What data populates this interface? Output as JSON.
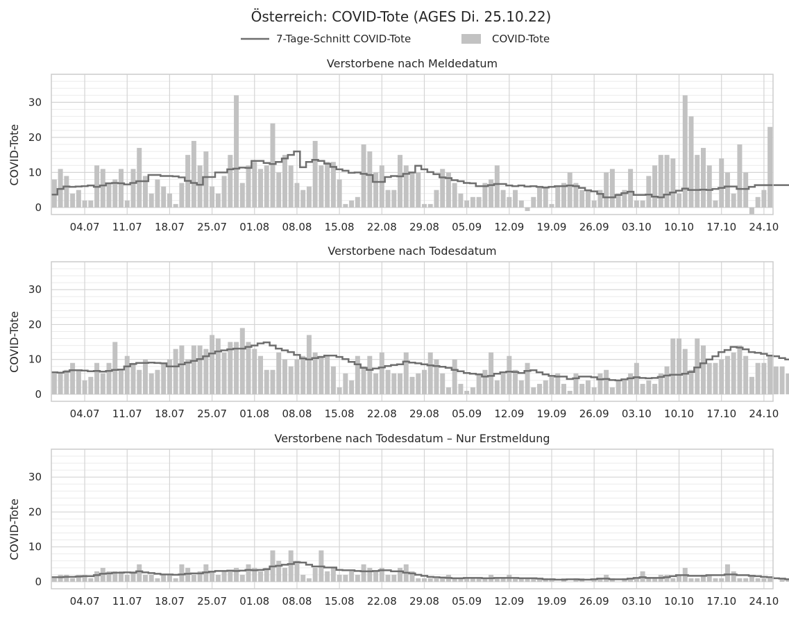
{
  "title": "Österreich: COVID-Tote (AGES Di. 25.10.22)",
  "legend": {
    "line_label": "7-Tage-Schnitt COVID-Tote",
    "bar_label": "COVID-Tote"
  },
  "colors": {
    "bar": "#c2c2c2",
    "line": "#6e6e6e",
    "grid_major": "#d4d4d4",
    "grid_minor": "#ebebeb",
    "frame": "#cccccc",
    "text": "#262626"
  },
  "chart_data": [
    {
      "type": "bar",
      "title": "Verstorbene nach Meldedatum",
      "ylabel": "COVID-Tote",
      "ylim": [
        -2,
        38
      ],
      "yticks": [
        0,
        10,
        20,
        30
      ],
      "xtick_labels": [
        "04.07",
        "11.07",
        "18.07",
        "25.07",
        "01.08",
        "08.08",
        "15.08",
        "22.08",
        "29.08",
        "05.09",
        "12.09",
        "19.09",
        "26.09",
        "03.10",
        "10.10",
        "17.10",
        "24.10"
      ],
      "first_date": "2022-06-29",
      "last_date": "2022-10-25",
      "values": [
        8,
        11,
        9,
        4,
        5,
        2,
        2,
        12,
        11,
        7,
        8,
        11,
        2,
        11,
        17,
        9,
        4,
        8,
        6,
        4,
        1,
        7,
        15,
        19,
        12,
        16,
        6,
        4,
        9,
        15,
        32,
        7,
        12,
        13,
        11,
        12,
        24,
        10,
        15,
        12,
        7,
        5,
        6,
        19,
        12,
        13,
        13,
        8,
        1,
        2,
        3,
        18,
        16,
        10,
        12,
        5,
        5,
        15,
        12,
        10,
        10,
        1,
        1,
        5,
        11,
        10,
        7,
        4,
        2,
        3,
        3,
        7,
        8,
        12,
        5,
        3,
        5,
        2,
        -1,
        3,
        6,
        6,
        1,
        6,
        7,
        10,
        7,
        5,
        5,
        2,
        5,
        10,
        11,
        4,
        5,
        11,
        2,
        2,
        9,
        12,
        15,
        15,
        14,
        4,
        32,
        26,
        15,
        17,
        12,
        2,
        14,
        10,
        4,
        18,
        10,
        -2,
        3,
        5,
        23
      ],
      "avg7": [
        3.7,
        5.3,
        6.0,
        5.9,
        6.0,
        6.1,
        6.3,
        5.9,
        6.3,
        6.9,
        7.0,
        6.9,
        6.6,
        7.0,
        7.5,
        7.5,
        9.3,
        9.3,
        9.0,
        9.0,
        8.9,
        8.6,
        7.6,
        7.0,
        6.5,
        8.7,
        8.7,
        10.0,
        10.0,
        10.9,
        11.1,
        11.4,
        11.3,
        13.3,
        13.3,
        12.7,
        12.4,
        13.0,
        14.0,
        15.0,
        16.0,
        11.5,
        13.0,
        13.6,
        13.3,
        12.5,
        11.6,
        10.9,
        10.5,
        9.9,
        10.0,
        9.6,
        9.3,
        7.3,
        7.3,
        8.7,
        9.0,
        8.9,
        9.6,
        10.0,
        11.9,
        10.9,
        10.1,
        9.5,
        8.6,
        8.4,
        7.8,
        7.5,
        7.0,
        6.9,
        6.1,
        6.1,
        6.4,
        6.7,
        6.7,
        6.3,
        6.1,
        6.3,
        6.0,
        6.1,
        5.9,
        5.7,
        5.9,
        6.1,
        6.1,
        6.3,
        6.1,
        5.6,
        4.9,
        4.6,
        3.9,
        2.9,
        2.9,
        3.6,
        4.1,
        4.5,
        3.6,
        3.6,
        3.7,
        3.1,
        2.9,
        3.7,
        4.3,
        4.8,
        5.4,
        5.0,
        5.0,
        5.1,
        5.0,
        5.3,
        5.6,
        6.0,
        6.0,
        5.3,
        5.3,
        5.9,
        6.4,
        6.4,
        6.4,
        6.4,
        6.4,
        6.4,
        8.0,
        9.4,
        9.6,
        9.9,
        9.6,
        9.6,
        9.9,
        12.6,
        14.3,
        14.6,
        14.6,
        14.3,
        14.1,
        14.7,
        15.0,
        11.9,
        9.9,
        9.9,
        9.7,
        8.9,
        8.4,
        9.4,
        9.7
      ]
    },
    {
      "type": "bar",
      "title": "Verstorbene nach Todesdatum",
      "ylabel": "COVID-Tote",
      "ylim": [
        -2,
        38
      ],
      "yticks": [
        0,
        10,
        20,
        30
      ],
      "xtick_labels": [
        "04.07",
        "11.07",
        "18.07",
        "25.07",
        "01.08",
        "08.08",
        "15.08",
        "22.08",
        "29.08",
        "05.09",
        "12.09",
        "19.09",
        "26.09",
        "03.10",
        "10.10",
        "17.10",
        "24.10"
      ],
      "first_date": "2022-06-29",
      "last_date": "2022-10-25",
      "values": [
        6,
        6,
        7,
        9,
        7,
        4,
        5,
        9,
        6,
        9,
        15,
        7,
        11,
        9,
        7,
        10,
        6,
        7,
        9,
        10,
        13,
        14,
        10,
        14,
        14,
        13,
        17,
        16,
        12,
        15,
        15,
        19,
        15,
        13,
        11,
        7,
        7,
        12,
        10,
        8,
        10,
        11,
        17,
        12,
        11,
        11,
        8,
        2,
        6,
        4,
        11,
        8,
        11,
        6,
        12,
        7,
        6,
        6,
        12,
        5,
        6,
        7,
        12,
        10,
        6,
        2,
        10,
        3,
        1,
        2,
        6,
        7,
        12,
        4,
        6,
        11,
        7,
        4,
        9,
        2,
        3,
        4,
        5,
        6,
        3,
        1,
        6,
        3,
        4,
        2,
        6,
        7,
        2,
        4,
        4,
        6,
        9,
        3,
        4,
        3,
        6,
        8,
        16,
        16,
        13,
        7,
        16,
        14,
        9,
        9,
        10,
        11,
        12,
        14,
        11,
        5,
        9,
        9,
        11,
        8,
        8,
        6,
        6,
        8,
        10,
        3
      ],
      "avg7": [
        6.3,
        6.2,
        6.5,
        6.9,
        6.9,
        6.8,
        6.6,
        6.7,
        6.5,
        6.7,
        7.0,
        7.1,
        8.0,
        8.7,
        9.0,
        9.0,
        9.1,
        9.0,
        8.9,
        8.0,
        8.0,
        8.6,
        9.1,
        9.6,
        10.1,
        10.9,
        11.7,
        12.3,
        12.6,
        12.9,
        13.1,
        13.1,
        13.6,
        14.0,
        14.6,
        14.9,
        14.0,
        13.1,
        12.6,
        12.1,
        11.3,
        10.3,
        10.0,
        10.4,
        10.7,
        11.1,
        11.1,
        10.7,
        10.1,
        9.3,
        8.6,
        7.6,
        7.0,
        7.4,
        7.7,
        8.1,
        8.4,
        8.6,
        9.4,
        9.1,
        8.9,
        8.6,
        8.3,
        8.1,
        7.9,
        7.6,
        7.0,
        6.6,
        6.1,
        5.9,
        5.7,
        5.1,
        5.3,
        5.9,
        6.3,
        6.5,
        6.4,
        6.1,
        6.7,
        6.9,
        6.3,
        5.7,
        5.3,
        5.1,
        5.1,
        4.4,
        4.6,
        5.1,
        5.1,
        4.9,
        4.3,
        4.4,
        4.1,
        4.0,
        4.3,
        4.6,
        4.9,
        4.7,
        4.6,
        4.7,
        5.0,
        5.4,
        5.6,
        5.6,
        5.9,
        6.4,
        7.7,
        8.9,
        10.0,
        10.9,
        12.1,
        12.7,
        13.6,
        13.4,
        12.9,
        12.1,
        11.9,
        11.6,
        11.1,
        10.9,
        10.4,
        10.0,
        9.4,
        8.9,
        8.3,
        7.9
      ],
      "avg7_note": "rounded to one decimal"
    },
    {
      "type": "bar",
      "title": "Verstorbene nach Todesdatum – Nur Erstmeldung",
      "ylabel": "COVID-Tote",
      "ylim": [
        -2,
        38
      ],
      "yticks": [
        0,
        10,
        20,
        30
      ],
      "xtick_labels": [
        "04.07",
        "11.07",
        "18.07",
        "25.07",
        "01.08",
        "08.08",
        "15.08",
        "22.08",
        "29.08",
        "05.09",
        "12.09",
        "19.09",
        "26.09",
        "03.10",
        "10.10",
        "17.10",
        "24.10"
      ],
      "first_date": "2022-06-29",
      "last_date": "2022-10-25",
      "values": [
        1,
        2,
        2,
        1,
        2,
        2,
        1,
        3,
        4,
        3,
        3,
        3,
        2,
        3,
        5,
        2,
        2,
        1,
        2,
        2,
        1,
        5,
        4,
        2,
        3,
        5,
        3,
        2,
        3,
        3,
        4,
        2,
        5,
        4,
        3,
        4,
        9,
        6,
        4,
        9,
        6,
        2,
        1,
        4,
        9,
        3,
        4,
        2,
        2,
        3,
        2,
        5,
        4,
        3,
        4,
        2,
        2,
        4,
        5,
        3,
        1,
        1,
        1,
        1,
        1,
        2,
        1,
        1,
        1,
        1,
        1,
        1,
        2,
        1,
        1,
        2,
        1,
        1,
        1,
        1,
        1,
        1,
        1,
        0,
        1,
        0,
        1,
        1,
        0,
        1,
        1,
        2,
        1,
        0,
        1,
        1,
        1,
        3,
        1,
        1,
        2,
        2,
        1,
        2,
        4,
        1,
        1,
        2,
        2,
        1,
        1,
        5,
        3,
        1,
        1,
        2,
        1,
        1,
        1,
        0,
        1,
        1,
        0,
        1,
        0,
        3
      ],
      "avg7": [
        1.3,
        1.3,
        1.4,
        1.4,
        1.5,
        1.6,
        1.6,
        1.9,
        2.3,
        2.4,
        2.6,
        2.6,
        2.7,
        2.6,
        3.0,
        2.7,
        2.5,
        2.3,
        2.1,
        2.1,
        2.0,
        2.1,
        2.3,
        2.4,
        2.4,
        2.7,
        2.9,
        3.1,
        3.1,
        3.2,
        3.1,
        3.2,
        3.4,
        3.3,
        3.4,
        3.6,
        4.4,
        4.6,
        4.9,
        5.1,
        5.6,
        5.5,
        4.9,
        4.4,
        4.4,
        4.1,
        4.1,
        3.4,
        3.3,
        3.3,
        3.1,
        3.0,
        3.0,
        3.1,
        3.3,
        3.3,
        3.0,
        3.0,
        2.6,
        2.4,
        2.0,
        1.7,
        1.4,
        1.3,
        1.2,
        1.1,
        1.0,
        1.0,
        1.1,
        1.1,
        1.1,
        1.0,
        1.0,
        1.1,
        1.1,
        1.1,
        1.1,
        1.0,
        1.0,
        1.0,
        0.9,
        0.7,
        0.7,
        0.6,
        0.6,
        0.7,
        0.7,
        0.6,
        0.6,
        0.7,
        0.9,
        0.9,
        0.7,
        0.7,
        0.7,
        0.9,
        1.1,
        1.3,
        1.1,
        1.1,
        1.1,
        1.3,
        1.6,
        1.9,
        1.9,
        1.7,
        1.7,
        1.7,
        1.9,
        1.9,
        1.9,
        2.1,
        2.1,
        1.9,
        1.9,
        1.7,
        1.6,
        1.4,
        1.3,
        1.0,
        0.9,
        0.7,
        0.7,
        0.6,
        0.6,
        0.9
      ]
    }
  ]
}
